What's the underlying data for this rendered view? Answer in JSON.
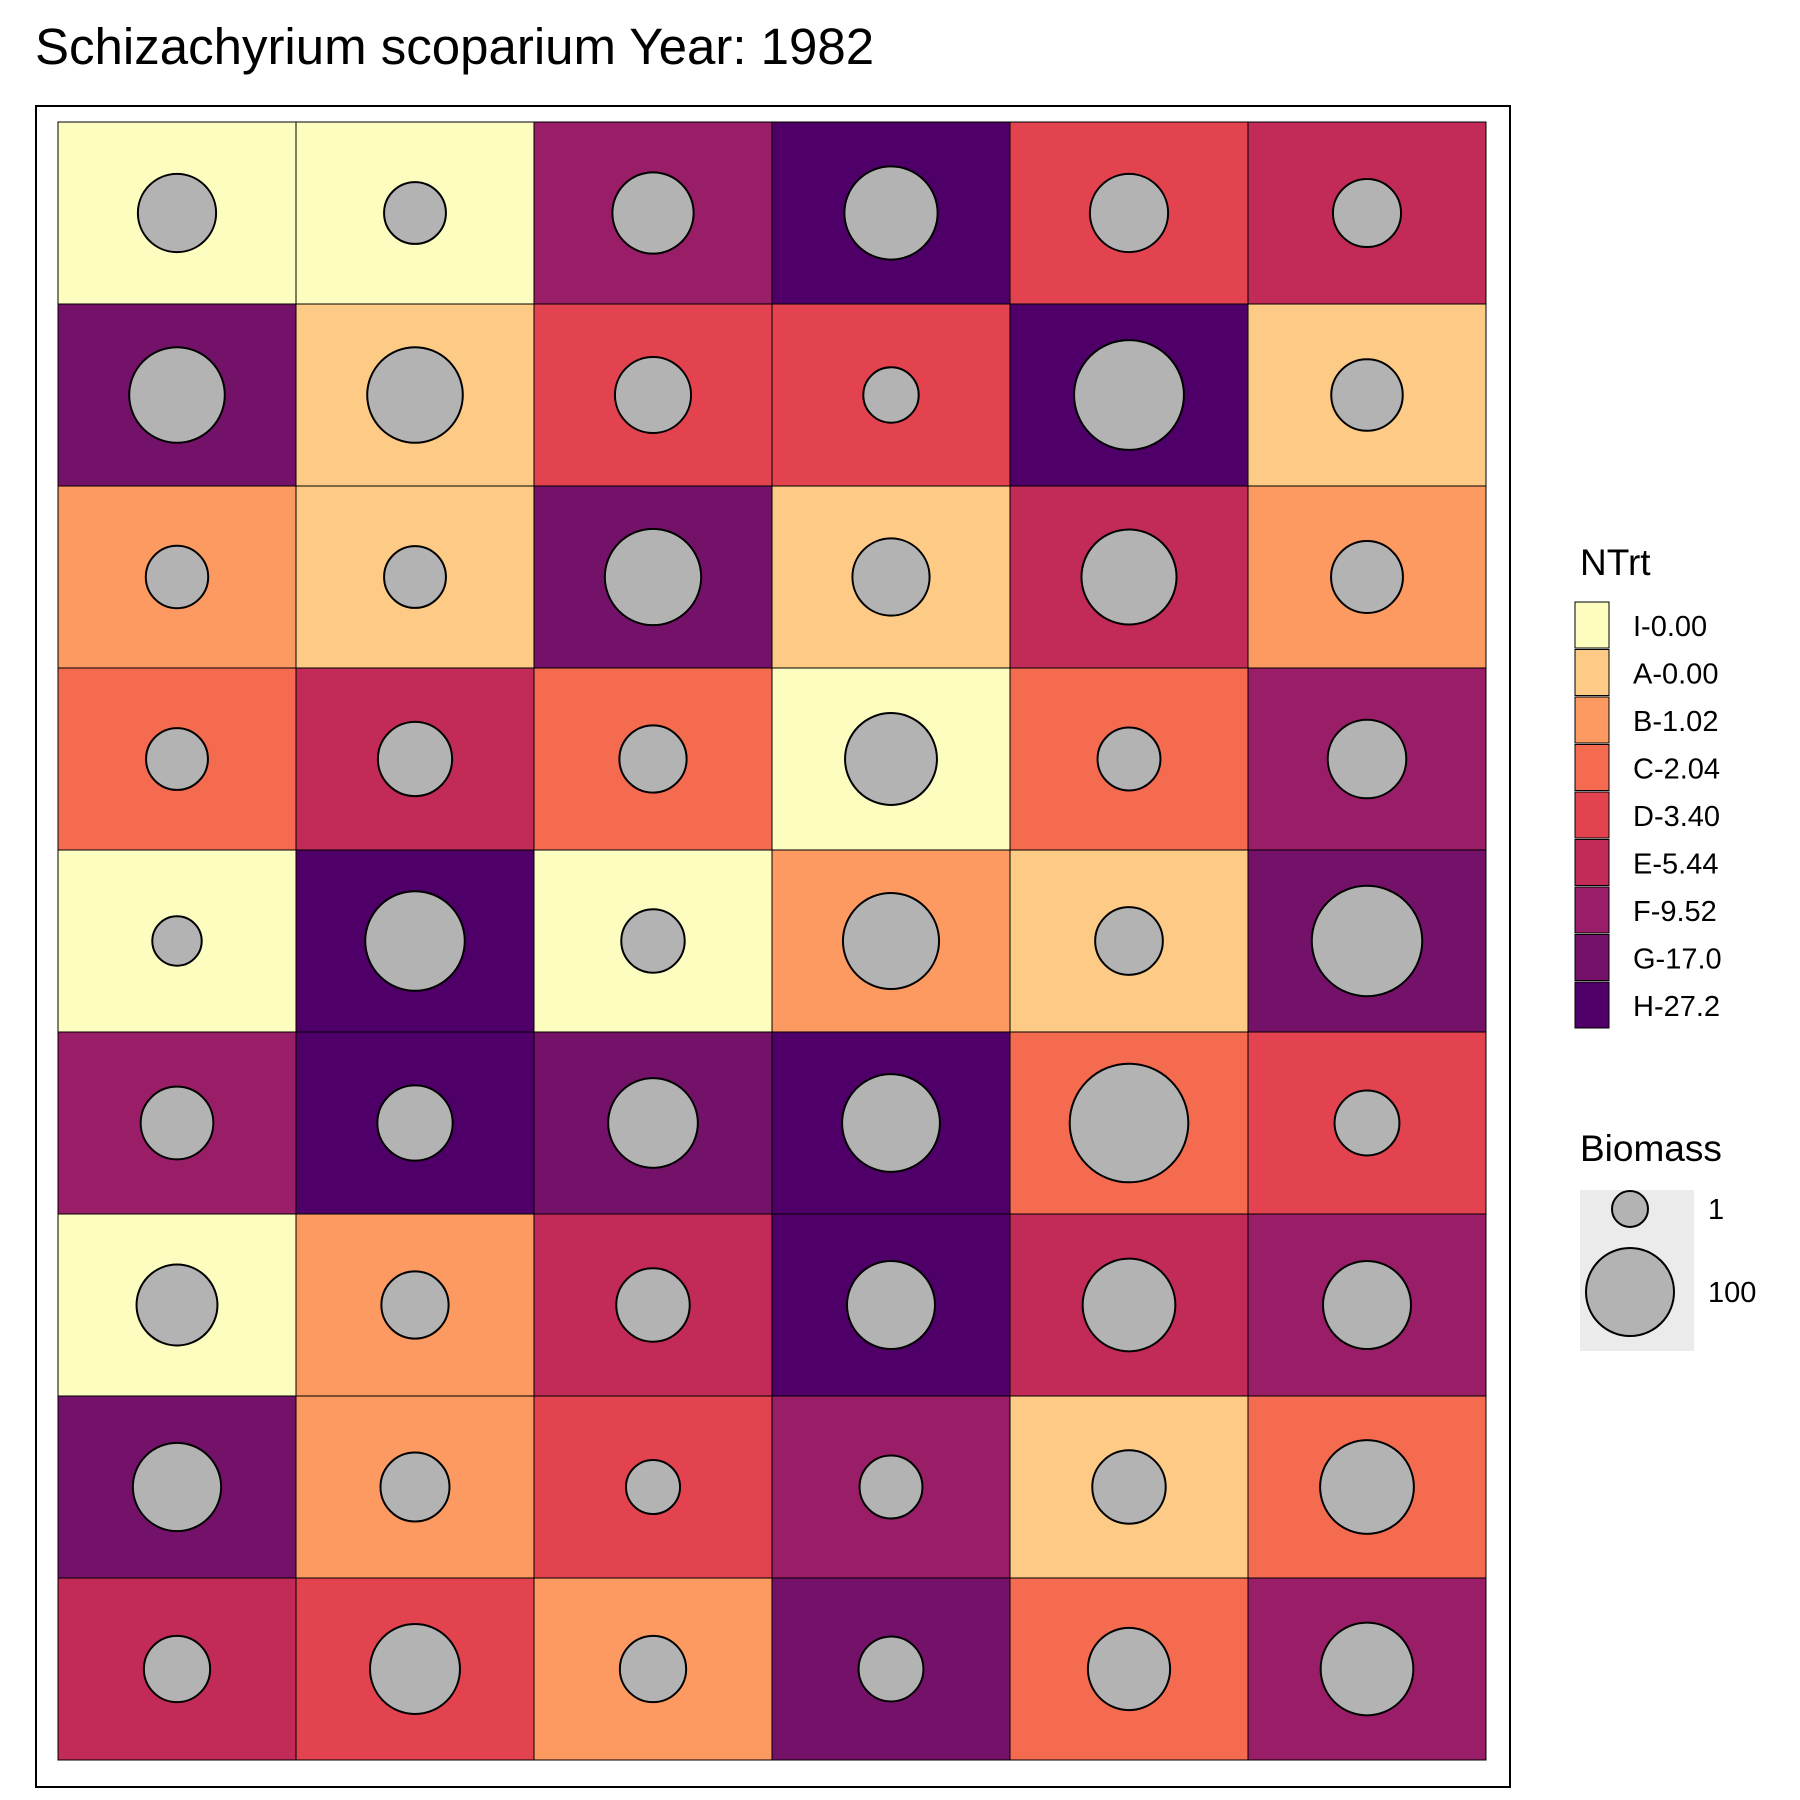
{
  "chart_data": {
    "type": "heatmap",
    "title": "Schizachyrium scoparium Year: 1982",
    "n_rows": 9,
    "n_cols": 6,
    "fill_legend": {
      "title": "NTrt",
      "levels": [
        {
          "label": "I-0.00",
          "color": "#FCFDBF"
        },
        {
          "label": "A-0.00",
          "color": "#FECB86"
        },
        {
          "label": "B-1.02",
          "color": "#FC9A61"
        },
        {
          "label": "C-2.04",
          "color": "#F56B4F"
        },
        {
          "label": "D-3.40",
          "color": "#E3434E"
        },
        {
          "label": "E-5.44",
          "color": "#C22A58"
        },
        {
          "label": "F-9.52",
          "color": "#9A1D67"
        },
        {
          "label": "G-17.0",
          "color": "#731268"
        },
        {
          "label": "H-27.2",
          "color": "#4F0068"
        }
      ]
    },
    "size_legend": {
      "title": "Biomass",
      "entries": [
        {
          "label": "1",
          "value": 1
        },
        {
          "label": "100",
          "value": 100
        }
      ]
    },
    "point_color": "#B3B3B3",
    "treatment_grid": [
      [
        "I-0.00",
        "I-0.00",
        "F-9.52",
        "H-27.2",
        "D-3.40",
        "E-5.44"
      ],
      [
        "G-17.0",
        "A-0.00",
        "D-3.40",
        "D-3.40",
        "H-27.2",
        "A-0.00"
      ],
      [
        "B-1.02",
        "A-0.00",
        "G-17.0",
        "A-0.00",
        "E-5.44",
        "B-1.02"
      ],
      [
        "C-2.04",
        "E-5.44",
        "C-2.04",
        "I-0.00",
        "C-2.04",
        "F-9.52"
      ],
      [
        "I-0.00",
        "H-27.2",
        "I-0.00",
        "B-1.02",
        "A-0.00",
        "G-17.0"
      ],
      [
        "F-9.52",
        "H-27.2",
        "G-17.0",
        "H-27.2",
        "C-2.04",
        "D-3.40"
      ],
      [
        "I-0.00",
        "B-1.02",
        "E-5.44",
        "H-27.2",
        "E-5.44",
        "F-9.52"
      ],
      [
        "G-17.0",
        "B-1.02",
        "D-3.40",
        "F-9.52",
        "A-0.00",
        "C-2.04"
      ],
      [
        "E-5.44",
        "D-3.40",
        "B-1.02",
        "G-17.0",
        "C-2.04",
        "F-9.52"
      ]
    ],
    "biomass_grid": [
      [
        69,
        30,
        78,
        119,
        69,
        43
      ],
      [
        128,
        128,
        63,
        19,
        190,
        51
      ],
      [
        31,
        30,
        131,
        66,
        126,
        52
      ],
      [
        30,
        58,
        41,
        114,
        32,
        70
      ],
      [
        11,
        144,
        33,
        130,
        42,
        193
      ],
      [
        54,
        61,
        106,
        137,
        234,
        36
      ],
      [
        77,
        41,
        56,
        100,
        117,
        100
      ],
      [
        101,
        45,
        17,
        32,
        56,
        121
      ],
      [
        39,
        107,
        39,
        36,
        81,
        117
      ]
    ]
  }
}
